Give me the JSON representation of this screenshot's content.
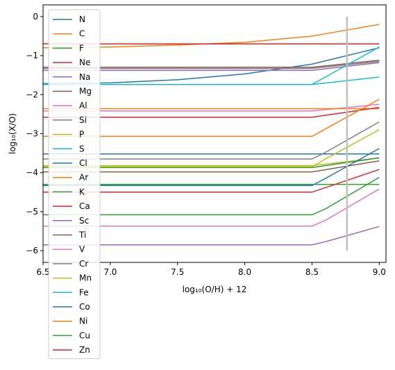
{
  "chart_data": {
    "type": "line",
    "xlabel": "log₁₀(O/H) + 12",
    "ylabel": "log₁₀(X/O)",
    "xlim": [
      6.5,
      9.05
    ],
    "ylim": [
      -6.3,
      0.3
    ],
    "xticks": [
      {
        "value": 6.5,
        "label": "6.5"
      },
      {
        "value": 7.0,
        "label": "7.0"
      },
      {
        "value": 7.5,
        "label": "7.5"
      },
      {
        "value": 8.0,
        "label": "8.0"
      },
      {
        "value": 8.5,
        "label": "8.5"
      },
      {
        "value": 9.0,
        "label": "9.0"
      }
    ],
    "yticks": [
      {
        "value": 0,
        "label": "0"
      },
      {
        "value": -1,
        "label": "−1"
      },
      {
        "value": -2,
        "label": "−2"
      },
      {
        "value": -3,
        "label": "−3"
      },
      {
        "value": -4,
        "label": "−4"
      },
      {
        "value": -5,
        "label": "−5"
      },
      {
        "value": -6,
        "label": "−6"
      }
    ],
    "grid": false,
    "legend_position": "upper-left",
    "reference_line": {
      "x": 8.76,
      "y_range": [
        -6.0,
        0.0
      ],
      "color": "#c0c0c0"
    },
    "series": [
      {
        "name": "N",
        "color": "#1f77b4",
        "x": [
          6.5,
          7.0,
          7.5,
          8.0,
          8.5,
          9.0
        ],
        "y": [
          -1.72,
          -1.7,
          -1.62,
          -1.47,
          -1.22,
          -0.8
        ]
      },
      {
        "name": "C",
        "color": "#ff7f0e",
        "x": [
          6.5,
          7.0,
          7.5,
          8.0,
          8.5,
          9.0
        ],
        "y": [
          -0.8,
          -0.78,
          -0.73,
          -0.66,
          -0.5,
          -0.2
        ]
      },
      {
        "name": "F",
        "color": "#2ca02c",
        "x": [
          6.5,
          9.0
        ],
        "y": [
          -4.3,
          -4.3
        ]
      },
      {
        "name": "Ne",
        "color": "#d62728",
        "x": [
          6.5,
          9.0
        ],
        "y": [
          -0.7,
          -0.7
        ]
      },
      {
        "name": "Na",
        "color": "#9467bd",
        "x": [
          6.5,
          8.5,
          9.0
        ],
        "y": [
          -1.38,
          -1.38,
          -1.18
        ]
      },
      {
        "name": "Mg",
        "color": "#8c564b",
        "x": [
          6.5,
          8.5,
          9.0
        ],
        "y": [
          -1.3,
          -1.3,
          -1.12
        ]
      },
      {
        "name": "Al",
        "color": "#e377c2",
        "x": [
          6.5,
          8.5,
          9.0
        ],
        "y": [
          -2.42,
          -2.42,
          -2.25
        ]
      },
      {
        "name": "Si",
        "color": "#7f7f7f",
        "x": [
          6.5,
          8.5,
          9.0
        ],
        "y": [
          -1.33,
          -1.33,
          -1.15
        ]
      },
      {
        "name": "P",
        "color": "#bcbd22",
        "x": [
          6.5,
          8.5,
          9.0
        ],
        "y": [
          -3.82,
          -3.82,
          -3.62
        ]
      },
      {
        "name": "S",
        "color": "#17becf",
        "x": [
          6.5,
          8.5,
          9.0
        ],
        "y": [
          -1.74,
          -1.74,
          -1.55
        ]
      },
      {
        "name": "Cl",
        "color": "#1f77b4",
        "x": [
          6.5,
          9.0
        ],
        "y": [
          -3.52,
          -3.52
        ]
      },
      {
        "name": "Ar",
        "color": "#ff7f0e",
        "x": [
          6.5,
          9.0
        ],
        "y": [
          -2.36,
          -2.36
        ]
      },
      {
        "name": "K",
        "color": "#2ca02c",
        "x": [
          6.5,
          8.5,
          9.0
        ],
        "y": [
          -3.87,
          -3.87,
          -3.62
        ]
      },
      {
        "name": "Ca",
        "color": "#d62728",
        "x": [
          6.5,
          8.5,
          9.0
        ],
        "y": [
          -2.58,
          -2.58,
          -2.33
        ]
      },
      {
        "name": "Sc",
        "color": "#9467bd",
        "x": [
          6.5,
          8.5,
          8.6,
          9.0
        ],
        "y": [
          -5.85,
          -5.85,
          -5.77,
          -5.38
        ]
      },
      {
        "name": "Ti",
        "color": "#8c564b",
        "x": [
          6.5,
          8.5,
          9.0
        ],
        "y": [
          -3.98,
          -3.98,
          -3.7
        ]
      },
      {
        "name": "V",
        "color": "#e377c2",
        "x": [
          6.5,
          8.5,
          8.6,
          9.0
        ],
        "y": [
          -5.37,
          -5.37,
          -5.22,
          -4.42
        ]
      },
      {
        "name": "Cr",
        "color": "#7f7f7f",
        "x": [
          6.5,
          8.5,
          8.6,
          9.0
        ],
        "y": [
          -3.65,
          -3.65,
          -3.48,
          -2.7
        ]
      },
      {
        "name": "Mn",
        "color": "#bcbd22",
        "x": [
          6.5,
          8.5,
          8.6,
          9.0
        ],
        "y": [
          -3.85,
          -3.85,
          -3.65,
          -2.9
        ]
      },
      {
        "name": "Fe",
        "color": "#17becf",
        "x": [
          6.5,
          8.5,
          8.6,
          9.0
        ],
        "y": [
          -1.74,
          -1.74,
          -1.55,
          -0.78
        ]
      },
      {
        "name": "Co",
        "color": "#1f77b4",
        "x": [
          6.5,
          8.5,
          8.6,
          9.0
        ],
        "y": [
          -4.33,
          -4.33,
          -4.15,
          -3.38
        ]
      },
      {
        "name": "Ni",
        "color": "#ff7f0e",
        "x": [
          6.5,
          8.5,
          8.6,
          9.0
        ],
        "y": [
          -3.07,
          -3.07,
          -2.88,
          -2.12
        ]
      },
      {
        "name": "Cu",
        "color": "#2ca02c",
        "x": [
          6.5,
          8.5,
          8.6,
          9.0
        ],
        "y": [
          -5.08,
          -5.08,
          -4.93,
          -4.12
        ]
      },
      {
        "name": "Zn",
        "color": "#d62728",
        "x": [
          6.5,
          8.5,
          9.0
        ],
        "y": [
          -4.5,
          -4.5,
          -3.92
        ]
      }
    ]
  }
}
